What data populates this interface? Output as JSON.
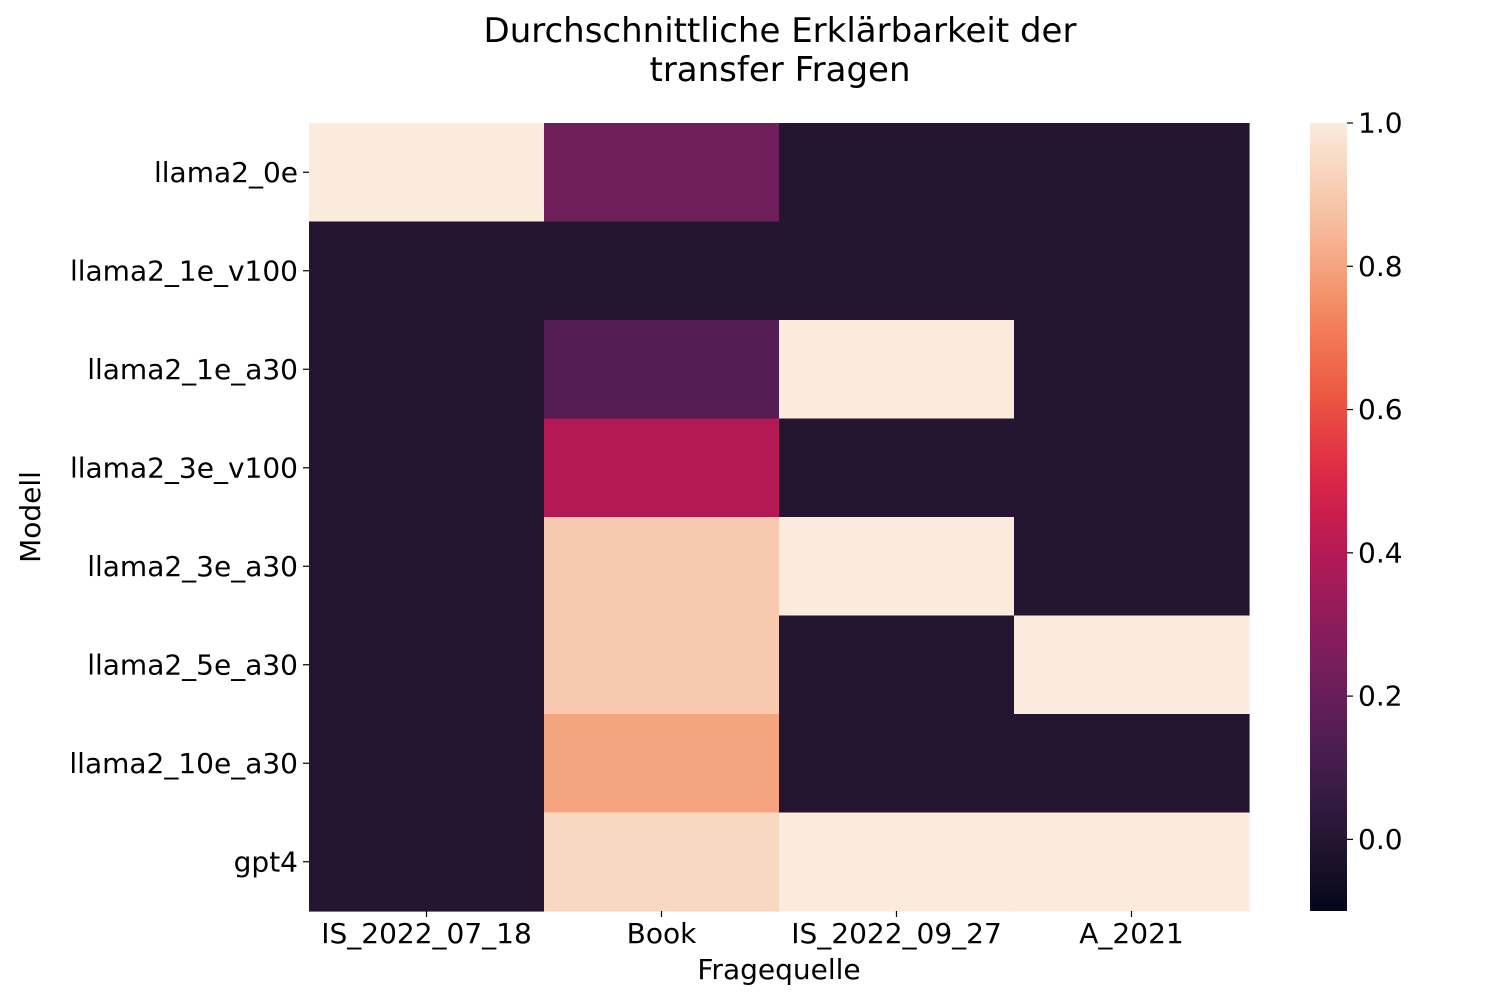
{
  "chart_data": {
    "type": "heatmap",
    "title_lines": [
      "Durchschnittliche Erklärbarkeit der",
      "transfer Fragen"
    ],
    "xlabel": "Fragequelle",
    "ylabel": "Modell",
    "x_categories": [
      "IS_2022_07_18",
      "Book",
      "IS_2022_09_27",
      "A_2021"
    ],
    "y_categories": [
      "llama2_0e",
      "llama2_1e_v100",
      "llama2_1e_a30",
      "llama2_3e_v100",
      "llama2_3e_a30",
      "llama2_5e_a30",
      "llama2_10e_a30",
      "gpt4"
    ],
    "values": [
      [
        1.0,
        0.22,
        0.0,
        0.0
      ],
      [
        0.0,
        0.0,
        0.0,
        0.0
      ],
      [
        0.0,
        0.15,
        1.0,
        0.0
      ],
      [
        0.0,
        0.4,
        0.0,
        0.0
      ],
      [
        0.0,
        0.9,
        1.0,
        0.0
      ],
      [
        0.0,
        0.9,
        0.0,
        1.0
      ],
      [
        0.0,
        0.8,
        0.0,
        0.0
      ],
      [
        0.0,
        0.94,
        1.0,
        1.0
      ]
    ],
    "colorbar": {
      "vmin": -0.1,
      "vmax": 1.0,
      "ticks": [
        1.0,
        0.8,
        0.6,
        0.4,
        0.2,
        0.0
      ],
      "tick_labels": [
        "1.0",
        "0.8",
        "0.6",
        "0.4",
        "0.2",
        "0.0"
      ],
      "colormap": "rocket"
    }
  }
}
